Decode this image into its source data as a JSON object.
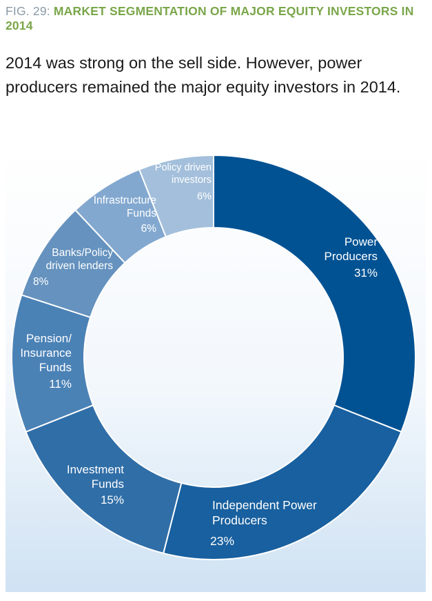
{
  "figure": {
    "prefix": "FIG. 29: ",
    "title": "MARKET SEGMENTATION OF MAJOR EQUITY INVESTORS IN 2014",
    "subtitle": "2014 was strong on the sell side. However, power producers remained the major equity investors in 2014."
  },
  "colors": {
    "title": "#7aa64a",
    "prefix": "#8a9aa6",
    "background_bottom": "#cfe2f3"
  },
  "chart_data": {
    "type": "pie",
    "variant": "donut",
    "start": "12 o'clock",
    "direction": "clockwise",
    "slices": [
      {
        "label": [
          "Power",
          "Producers"
        ],
        "value": 31,
        "value_label": "31%",
        "color": "#005293"
      },
      {
        "label": [
          "Independent Power",
          "Producers"
        ],
        "value": 23,
        "value_label": "23%",
        "color": "#18609f"
      },
      {
        "label": [
          "Investment",
          "Funds"
        ],
        "value": 15,
        "value_label": "15%",
        "color": "#306ea7"
      },
      {
        "label": [
          "Pension/",
          "Insurance",
          "Funds"
        ],
        "value": 11,
        "value_label": "11%",
        "color": "#4b82b6"
      },
      {
        "label": [
          "Banks/Policy",
          "driven lenders"
        ],
        "value": 8,
        "value_label": "8%",
        "color": "#6592be"
      },
      {
        "label": [
          "Infrastructure",
          "Funds"
        ],
        "value": 6,
        "value_label": "6%",
        "color": "#82a8cf"
      },
      {
        "label": [
          "Policy driven",
          "investors"
        ],
        "value": 6,
        "value_label": "6%",
        "color": "#a3bfdb"
      }
    ]
  }
}
